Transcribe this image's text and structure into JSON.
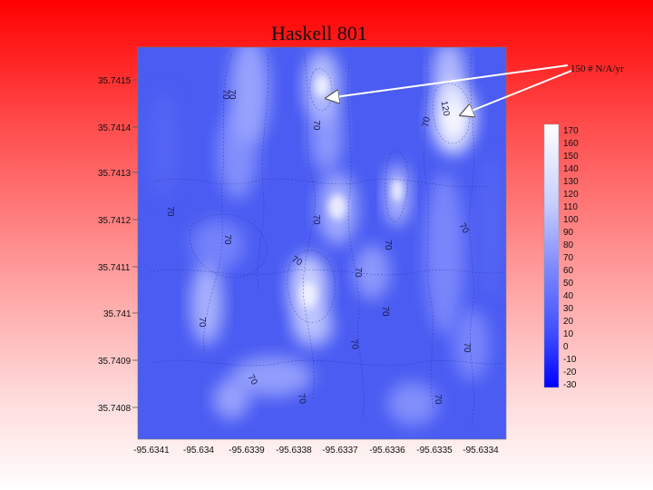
{
  "slide": {
    "title": "Haskell 801"
  },
  "chart_data": {
    "type": "heatmap",
    "title": "Haskell 801",
    "x_ticks": [
      "-95.6341",
      "-95.634",
      "-95.6339",
      "-95.6338",
      "-95.6337",
      "-95.6336",
      "-95.6335",
      "-95.6334"
    ],
    "y_ticks": [
      "35.7415",
      "35.7414",
      "35.7413",
      "35.7412",
      "35.7411",
      "35.741",
      "35.7409",
      "35.7408"
    ],
    "colorbar": {
      "values": [
        170,
        160,
        150,
        140,
        130,
        120,
        110,
        100,
        90,
        80,
        70,
        60,
        50,
        40,
        30,
        20,
        10,
        0,
        -10,
        -20,
        -30
      ],
      "labels": [
        "170",
        "160",
        "150",
        "140",
        "130",
        "120",
        "110",
        "100",
        "90",
        "80",
        "70",
        "60",
        "50",
        "40",
        "30",
        "20",
        "10",
        "0",
        "-10",
        "-20",
        "-30"
      ],
      "colors": {
        "low": "#0000ff",
        "mid": "#6f7dff",
        "high": "#ffffff"
      }
    },
    "contour_labels": [
      "70",
      "70",
      "70",
      "120",
      "70",
      "70",
      "70",
      "70",
      "70",
      "70",
      "70",
      "70",
      "70",
      "70",
      "70",
      "70",
      "70",
      "70",
      "70"
    ],
    "annotation": {
      "text": "150 # N/A/yr"
    }
  },
  "colors": {
    "plot_background": "#4a5cf2",
    "axis": "#444444"
  }
}
